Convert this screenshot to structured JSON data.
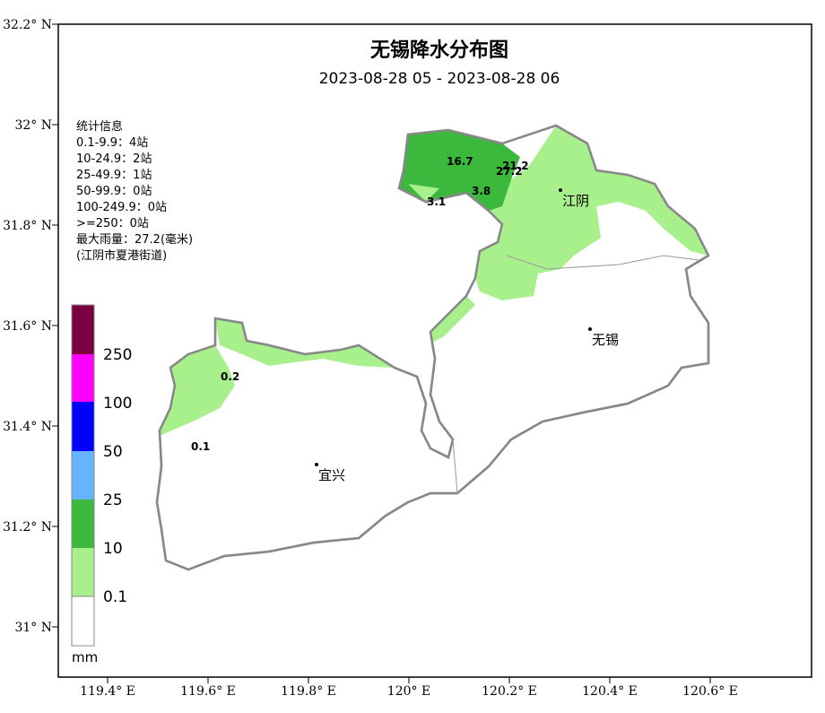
{
  "title": "无锡降水分布图",
  "subtitle": "2023-08-28 05 - 2023-08-28 06",
  "stats": [
    "统计信息",
    "0.1-9.9：4站",
    "10-24.9：2站",
    "25-49.9：1站",
    "50-99.9：0站",
    "100-249.9：0站",
    ">=250：0站",
    "最大雨量：27.2(毫米)",
    "(江阴市夏港街道)"
  ],
  "lat_ticks": [
    "32.2° N",
    "32° N",
    "31.8° N",
    "31.6° N",
    "31.4° N",
    "31.2° N",
    "31° N"
  ],
  "lon_ticks": [
    "119.4° E",
    "119.6° E",
    "119.8° E",
    "120° E",
    "120.2° E",
    "120.4° E",
    "120.6° E"
  ],
  "legend": {
    "labels": [
      "250",
      "100",
      "50",
      "25",
      "10",
      "0.1"
    ],
    "unit": "mm"
  },
  "cities": [
    "江阴",
    "无锡",
    "宜兴"
  ],
  "stations": [
    "16.7",
    "21.2",
    "27.2",
    "3.1",
    "3.8",
    "0.2",
    "0.1"
  ]
}
